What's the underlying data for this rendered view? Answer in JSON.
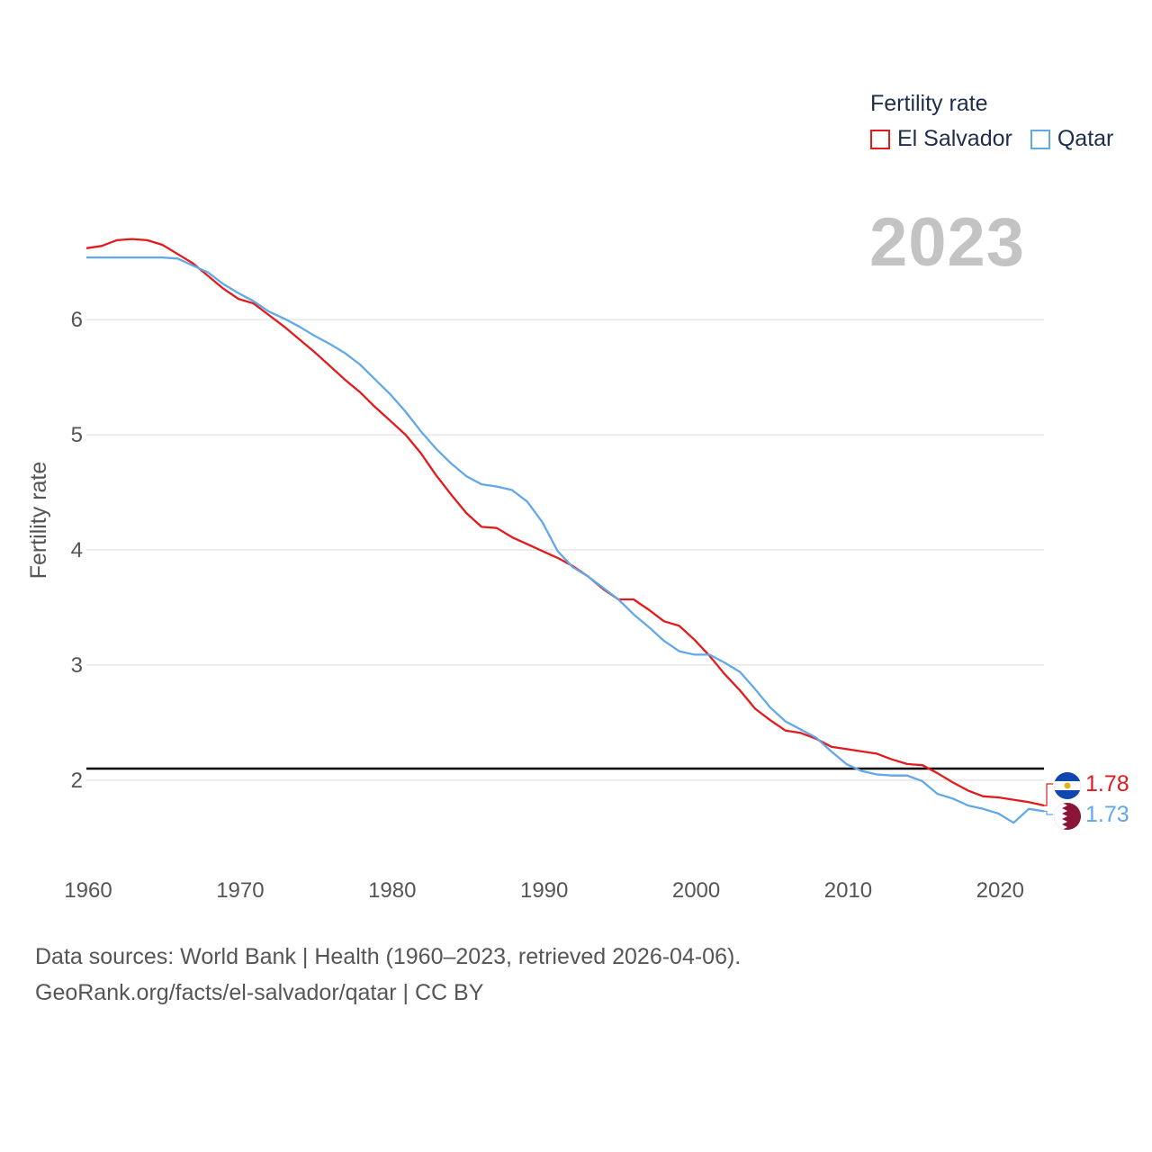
{
  "legend": {
    "title": "Fertility rate",
    "items": [
      {
        "label": "El Salvador",
        "color": "#e31a1c"
      },
      {
        "label": "Qatar",
        "color": "#62a8e8"
      }
    ]
  },
  "year_label": "2023",
  "source": {
    "line1": "Data sources: World Bank | Health (1960–2023, retrieved 2026-04-06).",
    "line2": "GeoRank.org/facts/el-salvador/qatar | CC BY"
  },
  "chart_data": {
    "type": "line",
    "title": "Fertility rate",
    "xlabel": "",
    "ylabel": "Fertility rate",
    "xlim": [
      1960,
      2023
    ],
    "ylim": [
      1.35,
      6.9
    ],
    "x_ticks": [
      1960,
      1970,
      1980,
      1990,
      2000,
      2010,
      2020
    ],
    "y_ticks": [
      2,
      3,
      4,
      5,
      6
    ],
    "grid": true,
    "reference_line": {
      "value": 2.1,
      "color": "#000000"
    },
    "x": [
      1960,
      1961,
      1962,
      1963,
      1964,
      1965,
      1966,
      1967,
      1968,
      1969,
      1970,
      1971,
      1972,
      1973,
      1974,
      1975,
      1976,
      1977,
      1978,
      1979,
      1980,
      1981,
      1982,
      1983,
      1984,
      1985,
      1986,
      1987,
      1988,
      1989,
      1990,
      1991,
      1992,
      1993,
      1994,
      1995,
      1996,
      1997,
      1998,
      1999,
      2000,
      2001,
      2002,
      2003,
      2004,
      2005,
      2006,
      2007,
      2008,
      2009,
      2010,
      2011,
      2012,
      2013,
      2014,
      2015,
      2016,
      2017,
      2018,
      2019,
      2020,
      2021,
      2022,
      2023
    ],
    "series": [
      {
        "name": "El Salvador",
        "color": "#e31a1c",
        "end_label": "1.78",
        "values": [
          6.62,
          6.64,
          6.69,
          6.7,
          6.69,
          6.65,
          6.57,
          6.49,
          6.38,
          6.27,
          6.18,
          6.14,
          6.04,
          5.94,
          5.83,
          5.72,
          5.6,
          5.48,
          5.37,
          5.24,
          5.12,
          5.0,
          4.84,
          4.65,
          4.48,
          4.32,
          4.2,
          4.19,
          4.11,
          4.05,
          3.99,
          3.93,
          3.86,
          3.77,
          3.66,
          3.57,
          3.57,
          3.48,
          3.38,
          3.34,
          3.22,
          3.08,
          2.92,
          2.78,
          2.62,
          2.52,
          2.43,
          2.41,
          2.36,
          2.29,
          2.27,
          2.25,
          2.23,
          2.18,
          2.14,
          2.13,
          2.06,
          1.98,
          1.91,
          1.86,
          1.85,
          1.83,
          1.81,
          1.78
        ]
      },
      {
        "name": "Qatar",
        "color": "#62a8e8",
        "end_label": "1.73",
        "values": [
          6.54,
          6.54,
          6.54,
          6.54,
          6.54,
          6.54,
          6.53,
          6.47,
          6.41,
          6.31,
          6.23,
          6.16,
          6.07,
          6.01,
          5.94,
          5.86,
          5.79,
          5.71,
          5.61,
          5.48,
          5.35,
          5.2,
          5.03,
          4.88,
          4.75,
          4.64,
          4.57,
          4.55,
          4.52,
          4.42,
          4.24,
          3.99,
          3.85,
          3.77,
          3.67,
          3.57,
          3.44,
          3.33,
          3.21,
          3.12,
          3.09,
          3.09,
          3.02,
          2.94,
          2.79,
          2.63,
          2.51,
          2.44,
          2.37,
          2.25,
          2.14,
          2.08,
          2.05,
          2.04,
          2.04,
          1.99,
          1.88,
          1.84,
          1.78,
          1.75,
          1.71,
          1.63,
          1.75,
          1.73
        ]
      }
    ]
  }
}
